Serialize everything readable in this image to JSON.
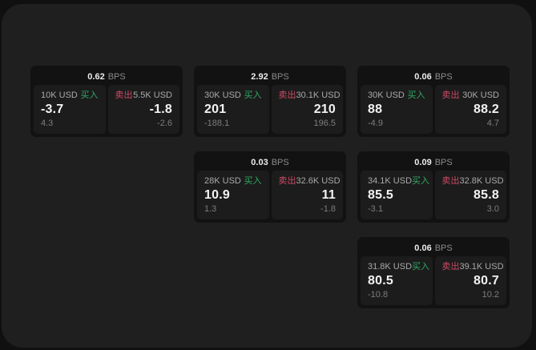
{
  "labels": {
    "bps_unit": "BPS",
    "buy": "买入",
    "sell": "卖出"
  },
  "colors": {
    "buy": "#2fa865",
    "sell": "#cc4a66",
    "window_bg": "#1f1f1f",
    "card_bg": "#121212",
    "panel_bg": "#1c1c1c"
  },
  "cards": [
    {
      "spread": "0.62",
      "buy": {
        "amount": "10K USD",
        "price": "-3.7",
        "delta": "4.3"
      },
      "sell": {
        "amount": "5.5K USD",
        "price": "-1.8",
        "delta": "-2.6"
      }
    },
    {
      "spread": "2.92",
      "buy": {
        "amount": "30K USD",
        "price": "201",
        "delta": "-188.1"
      },
      "sell": {
        "amount": "30.1K USD",
        "price": "210",
        "delta": "196.5"
      }
    },
    {
      "spread": "0.06",
      "buy": {
        "amount": "30K USD",
        "price": "88",
        "delta": "-4.9"
      },
      "sell": {
        "amount": "30K USD",
        "price": "88.2",
        "delta": "4.7"
      }
    },
    {
      "spread": "0.03",
      "buy": {
        "amount": "28K USD",
        "price": "10.9",
        "delta": "1.3"
      },
      "sell": {
        "amount": "32.6K USD",
        "price": "11",
        "delta": "-1.8"
      }
    },
    {
      "spread": "0.09",
      "buy": {
        "amount": "34.1K USD",
        "price": "85.5",
        "delta": "-3.1"
      },
      "sell": {
        "amount": "32.8K USD",
        "price": "85.8",
        "delta": "3.0"
      }
    },
    {
      "spread": "0.06",
      "buy": {
        "amount": "31.8K USD",
        "price": "80.5",
        "delta": "-10.8"
      },
      "sell": {
        "amount": "39.1K USD",
        "price": "80.7",
        "delta": "10.2"
      }
    }
  ]
}
